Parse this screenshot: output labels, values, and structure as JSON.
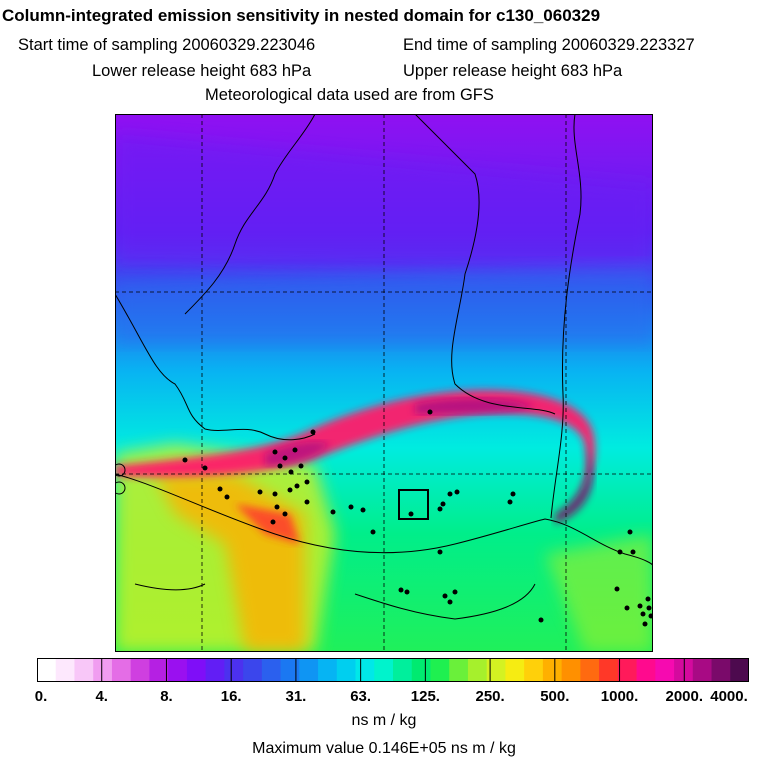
{
  "title": "Column-integrated emission sensitivity in nested domain for c130_060329",
  "header": {
    "start_sampling": "Start time of sampling 20060329.223046",
    "end_sampling": "End time of sampling 20060329.223327",
    "lower_release": "Lower release height  683 hPa",
    "upper_release": "Upper release height  683 hPa",
    "met_data": "Meteorological data used are from GFS"
  },
  "colorbar": {
    "colors": [
      "#ffffff",
      "#fde8fd",
      "#f8c7f8",
      "#f09df0",
      "#e46de6",
      "#cf3fe0",
      "#b520e3",
      "#9a10f0",
      "#7f0ef8",
      "#621ef5",
      "#4c31ef",
      "#3b46ec",
      "#2b60ee",
      "#1b78f2",
      "#0f95f3",
      "#06b4f3",
      "#00cfef",
      "#00e8e8",
      "#00f3cc",
      "#00ef9c",
      "#00ea70",
      "#1ff050",
      "#6af03a",
      "#a6f02c",
      "#d4f222",
      "#f6ec12",
      "#ffd00a",
      "#ffb000",
      "#ff9000",
      "#ff6a10",
      "#ff3828",
      "#ff1a5a",
      "#ff0a8e",
      "#f60ab0",
      "#d40a9e",
      "#a80a84",
      "#7a0a6a",
      "#4d0a4e"
    ],
    "labels": [
      "0.",
      "4.",
      "8.",
      "16.",
      "31.",
      "63.",
      "125.",
      "250.",
      "500.",
      "1000.",
      "2000.",
      "4000."
    ]
  },
  "units_label": "ns m / kg",
  "max_value_label": "Maximum value  0.146E+05 ns m / kg",
  "map_features": [
    "coastline",
    "country-borders",
    "lat-lon-gridlines",
    "release-box-marker",
    "station-points"
  ]
}
